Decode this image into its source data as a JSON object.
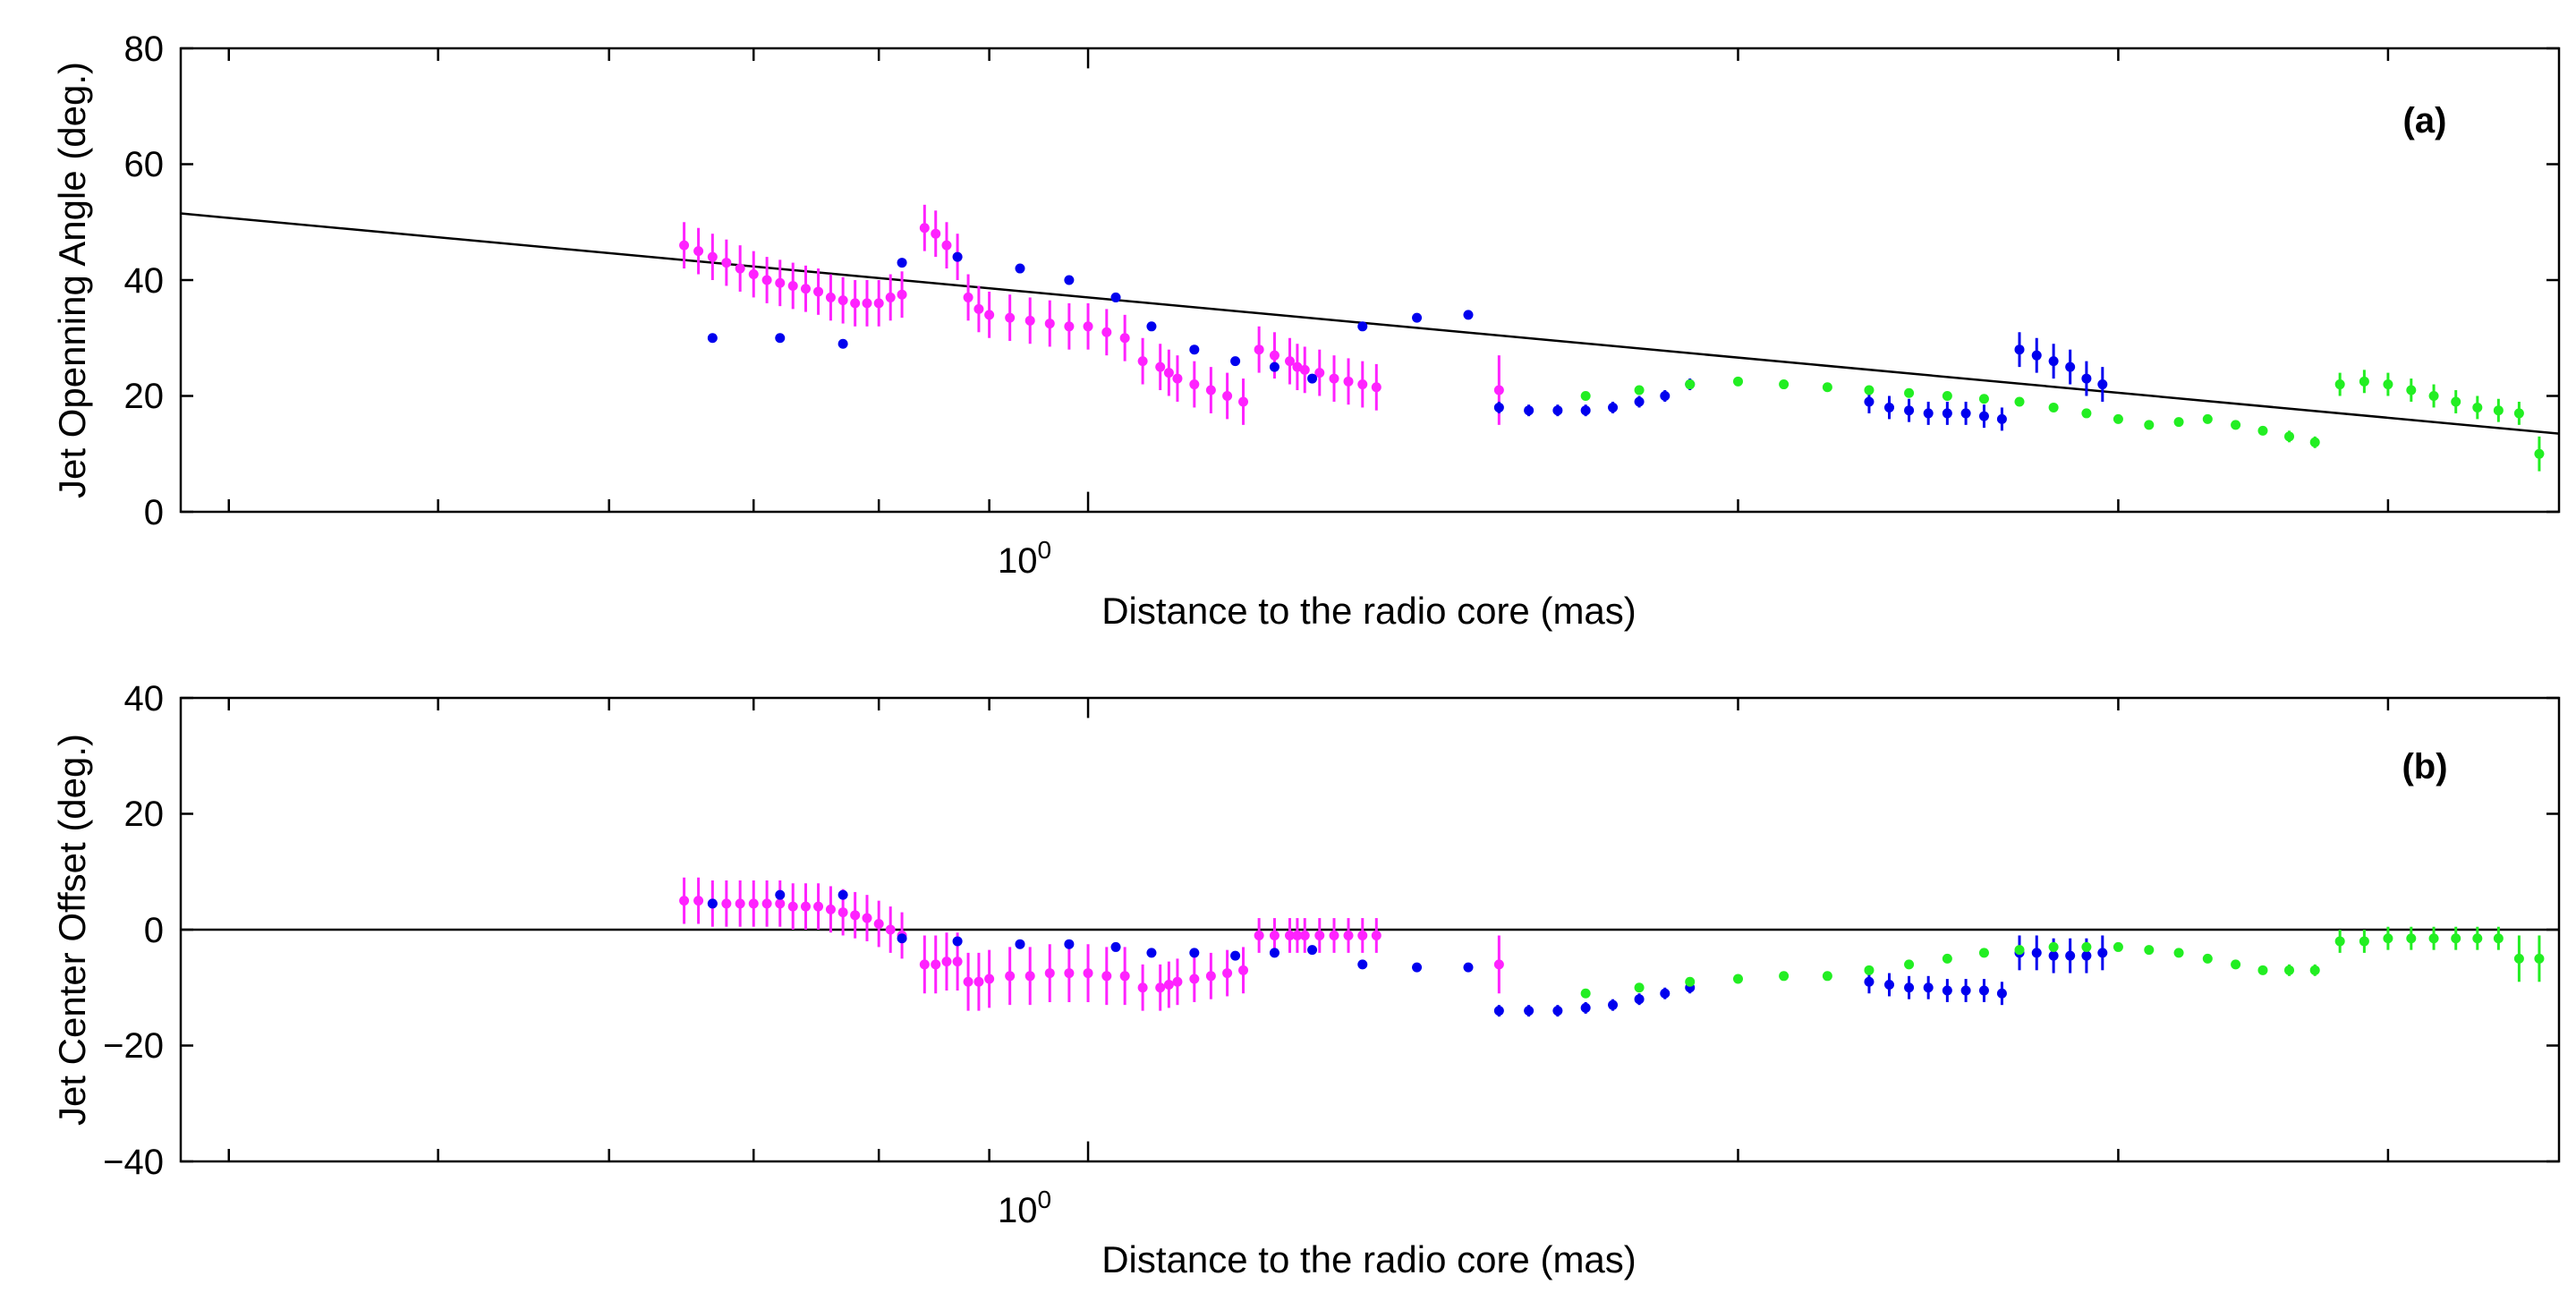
{
  "chart_data": [
    {
      "type": "scatter",
      "panel_label": "(a)",
      "xscale": "log",
      "xlabel": "Distance to the radio core (mas)",
      "ylabel": "Jet Openning Angle (deg.)",
      "xlim": [
        0.38,
        4.8
      ],
      "ylim": [
        0,
        80
      ],
      "yticks": [
        "0",
        "20",
        "40",
        "60",
        "80"
      ],
      "xtick_label": {
        "base": "10",
        "exp": "0"
      },
      "fit_line": {
        "x": [
          0.38,
          4.8
        ],
        "y": [
          51.5,
          13.5
        ],
        "color": "#000000"
      },
      "series": [
        {
          "name": "magenta",
          "color": "#ff22ff",
          "x": [
            0.65,
            0.66,
            0.67,
            0.68,
            0.69,
            0.7,
            0.71,
            0.72,
            0.73,
            0.74,
            0.75,
            0.76,
            0.77,
            0.78,
            0.79,
            0.8,
            0.81,
            0.82,
            0.84,
            0.85,
            0.86,
            0.87,
            0.88,
            0.89,
            0.9,
            0.92,
            0.94,
            0.96,
            0.98,
            1.0,
            1.02,
            1.04,
            1.06,
            1.08,
            1.09,
            1.1,
            1.12,
            1.14,
            1.16,
            1.18,
            1.2,
            1.22,
            1.24,
            1.25,
            1.26,
            1.28,
            1.3,
            1.32,
            1.34,
            1.36,
            1.55
          ],
          "y": [
            46,
            45,
            44,
            43,
            42,
            41,
            40,
            39.5,
            39,
            38.5,
            38,
            37,
            36.5,
            36,
            36,
            36,
            37,
            37.5,
            49,
            48,
            46,
            44,
            37,
            35,
            34,
            33.5,
            33,
            32.5,
            32,
            32,
            31,
            30,
            26,
            25,
            24,
            23,
            22,
            21,
            20,
            19,
            28,
            27,
            26,
            25,
            24.5,
            24,
            23,
            22.5,
            22,
            21.5,
            21
          ],
          "yerr": [
            4,
            4,
            4,
            4,
            4,
            4,
            4,
            4,
            4,
            4,
            4,
            4,
            4,
            4,
            4,
            4,
            4,
            4,
            4,
            4,
            4,
            4,
            4,
            4,
            4,
            4,
            4,
            4,
            4,
            4,
            4,
            4,
            4,
            4,
            4,
            4,
            4,
            4,
            4,
            4,
            4,
            4,
            4,
            4,
            4,
            4,
            4,
            4,
            4,
            4,
            6
          ]
        },
        {
          "name": "blue",
          "color": "#0000ee",
          "x": [
            0.67,
            0.72,
            0.77,
            0.82,
            0.87,
            0.93,
            0.98,
            1.03,
            1.07,
            1.12,
            1.17,
            1.22,
            1.27,
            1.34,
            1.42,
            1.5,
            1.55,
            1.6,
            1.65,
            1.7,
            1.75,
            1.8,
            1.85,
            1.9,
            2.3,
            2.35,
            2.4,
            2.45,
            2.5,
            2.55,
            2.6,
            2.65,
            2.7,
            2.75,
            2.8,
            2.85,
            2.9,
            2.95
          ],
          "y": [
            30,
            30,
            29,
            43,
            44,
            42,
            40,
            37,
            32,
            28,
            26,
            25,
            23,
            32,
            33.5,
            34,
            18,
            17.5,
            17.5,
            17.5,
            18,
            19,
            20,
            22,
            19,
            18,
            17.5,
            17,
            17,
            17,
            16.5,
            16,
            28,
            27,
            26,
            25,
            23,
            22
          ],
          "yerr": [
            0,
            0,
            0,
            0,
            0,
            0,
            0,
            0,
            0,
            0,
            0,
            0,
            0,
            0,
            0,
            0,
            1,
            1,
            1,
            1,
            1,
            1,
            1,
            1,
            2,
            2,
            2,
            2,
            2,
            2,
            2,
            2,
            3,
            3,
            3,
            3,
            3,
            3
          ]
        },
        {
          "name": "green",
          "color": "#22ee22",
          "x": [
            1.7,
            1.8,
            1.9,
            2.0,
            2.1,
            2.2,
            2.3,
            2.4,
            2.5,
            2.6,
            2.7,
            2.8,
            2.9,
            3.0,
            3.1,
            3.2,
            3.3,
            3.4,
            3.5,
            3.6,
            3.7,
            3.8,
            3.9,
            4.0,
            4.1,
            4.2,
            4.3,
            4.4,
            4.5,
            4.6,
            4.7
          ],
          "y": [
            20,
            21,
            22,
            22.5,
            22,
            21.5,
            21,
            20.5,
            20,
            19.5,
            19,
            18,
            17,
            16,
            15,
            15.5,
            16,
            15,
            14,
            13,
            12,
            22,
            22.5,
            22,
            21,
            20,
            19,
            18,
            17.5,
            17,
            10
          ],
          "yerr": [
            0,
            0,
            0,
            0,
            0,
            0,
            0,
            0,
            0,
            0,
            0,
            0,
            0,
            0,
            0,
            0,
            0,
            0,
            0,
            1,
            1,
            2,
            2,
            2,
            2,
            2,
            2,
            2,
            2,
            2,
            3
          ]
        }
      ]
    },
    {
      "type": "scatter",
      "panel_label": "(b)",
      "xscale": "log",
      "xlabel": "Distance to the radio core (mas)",
      "ylabel": "Jet Center Offset (deg.)",
      "xlim": [
        0.38,
        4.8
      ],
      "ylim": [
        -40,
        40
      ],
      "yticks": [
        "−40",
        "−20",
        "0",
        "20",
        "40"
      ],
      "xtick_label": {
        "base": "10",
        "exp": "0"
      },
      "fit_line": {
        "x": [
          0.38,
          4.8
        ],
        "y": [
          0,
          0
        ],
        "color": "#000000"
      },
      "series": [
        {
          "name": "magenta",
          "color": "#ff22ff",
          "x": [
            0.65,
            0.66,
            0.67,
            0.68,
            0.69,
            0.7,
            0.71,
            0.72,
            0.73,
            0.74,
            0.75,
            0.76,
            0.77,
            0.78,
            0.79,
            0.8,
            0.81,
            0.82,
            0.84,
            0.85,
            0.86,
            0.87,
            0.88,
            0.89,
            0.9,
            0.92,
            0.94,
            0.96,
            0.98,
            1.0,
            1.02,
            1.04,
            1.06,
            1.08,
            1.09,
            1.1,
            1.12,
            1.14,
            1.16,
            1.18,
            1.2,
            1.22,
            1.24,
            1.25,
            1.26,
            1.28,
            1.3,
            1.32,
            1.34,
            1.36,
            1.55
          ],
          "y": [
            5,
            5,
            4.5,
            4.5,
            4.5,
            4.5,
            4.5,
            4.5,
            4,
            4,
            4,
            3.5,
            3,
            2.5,
            2,
            1,
            0,
            -1,
            -6,
            -6,
            -5.5,
            -5.5,
            -9,
            -9,
            -8.5,
            -8,
            -8,
            -7.5,
            -7.5,
            -7.5,
            -8,
            -8,
            -10,
            -10,
            -9.5,
            -9,
            -8.5,
            -8,
            -7.5,
            -7,
            -1,
            -1,
            -1,
            -1,
            -1,
            -1,
            -1,
            -1,
            -1,
            -1,
            -6
          ],
          "yerr": [
            4,
            4,
            4,
            4,
            4,
            4,
            4,
            4,
            4,
            4,
            4,
            4,
            4,
            4,
            4,
            4,
            4,
            4,
            5,
            5,
            5,
            5,
            5,
            5,
            5,
            5,
            5,
            5,
            5,
            5,
            5,
            5,
            4,
            4,
            4,
            4,
            4,
            4,
            4,
            4,
            3,
            3,
            3,
            3,
            3,
            3,
            3,
            3,
            3,
            3,
            5
          ]
        },
        {
          "name": "blue",
          "color": "#0000ee",
          "x": [
            0.67,
            0.72,
            0.77,
            0.82,
            0.87,
            0.93,
            0.98,
            1.03,
            1.07,
            1.12,
            1.17,
            1.22,
            1.27,
            1.34,
            1.42,
            1.5,
            1.55,
            1.6,
            1.65,
            1.7,
            1.75,
            1.8,
            1.85,
            1.9,
            2.3,
            2.35,
            2.4,
            2.45,
            2.5,
            2.55,
            2.6,
            2.65,
            2.7,
            2.75,
            2.8,
            2.85,
            2.9,
            2.95
          ],
          "y": [
            4.5,
            6,
            6,
            -1.5,
            -2,
            -2.5,
            -2.5,
            -3,
            -4,
            -4,
            -4.5,
            -4,
            -3.5,
            -6,
            -6.5,
            -6.5,
            -14,
            -14,
            -14,
            -13.5,
            -13,
            -12,
            -11,
            -10,
            -9,
            -9.5,
            -10,
            -10,
            -10.5,
            -10.5,
            -10.5,
            -11,
            -4,
            -4,
            -4.5,
            -4.5,
            -4.5,
            -4
          ],
          "yerr": [
            0,
            0,
            0,
            0,
            0,
            0,
            0,
            0,
            0,
            0,
            0,
            0,
            0,
            0,
            0,
            0,
            1,
            1,
            1,
            1,
            1,
            1,
            1,
            1,
            2,
            2,
            2,
            2,
            2,
            2,
            2,
            2,
            3,
            3,
            3,
            3,
            3,
            3
          ]
        },
        {
          "name": "green",
          "color": "#22ee22",
          "x": [
            1.7,
            1.8,
            1.9,
            2.0,
            2.1,
            2.2,
            2.3,
            2.4,
            2.5,
            2.6,
            2.7,
            2.8,
            2.9,
            3.0,
            3.1,
            3.2,
            3.3,
            3.4,
            3.5,
            3.6,
            3.7,
            3.8,
            3.9,
            4.0,
            4.1,
            4.2,
            4.3,
            4.4,
            4.5,
            4.6,
            4.7
          ],
          "y": [
            -11,
            -10,
            -9,
            -8.5,
            -8,
            -8,
            -7,
            -6,
            -5,
            -4,
            -3.5,
            -3,
            -3,
            -3,
            -3.5,
            -4,
            -5,
            -6,
            -7,
            -7,
            -7,
            -2,
            -2,
            -1.5,
            -1.5,
            -1.5,
            -1.5,
            -1.5,
            -1.5,
            -5,
            -5
          ],
          "yerr": [
            0,
            0,
            0,
            0,
            0,
            0,
            0,
            0,
            0,
            0,
            0,
            0,
            0,
            0,
            0,
            0,
            0,
            0,
            0,
            1,
            1,
            2,
            2,
            2,
            2,
            2,
            2,
            2,
            2,
            4,
            4
          ]
        }
      ]
    }
  ]
}
